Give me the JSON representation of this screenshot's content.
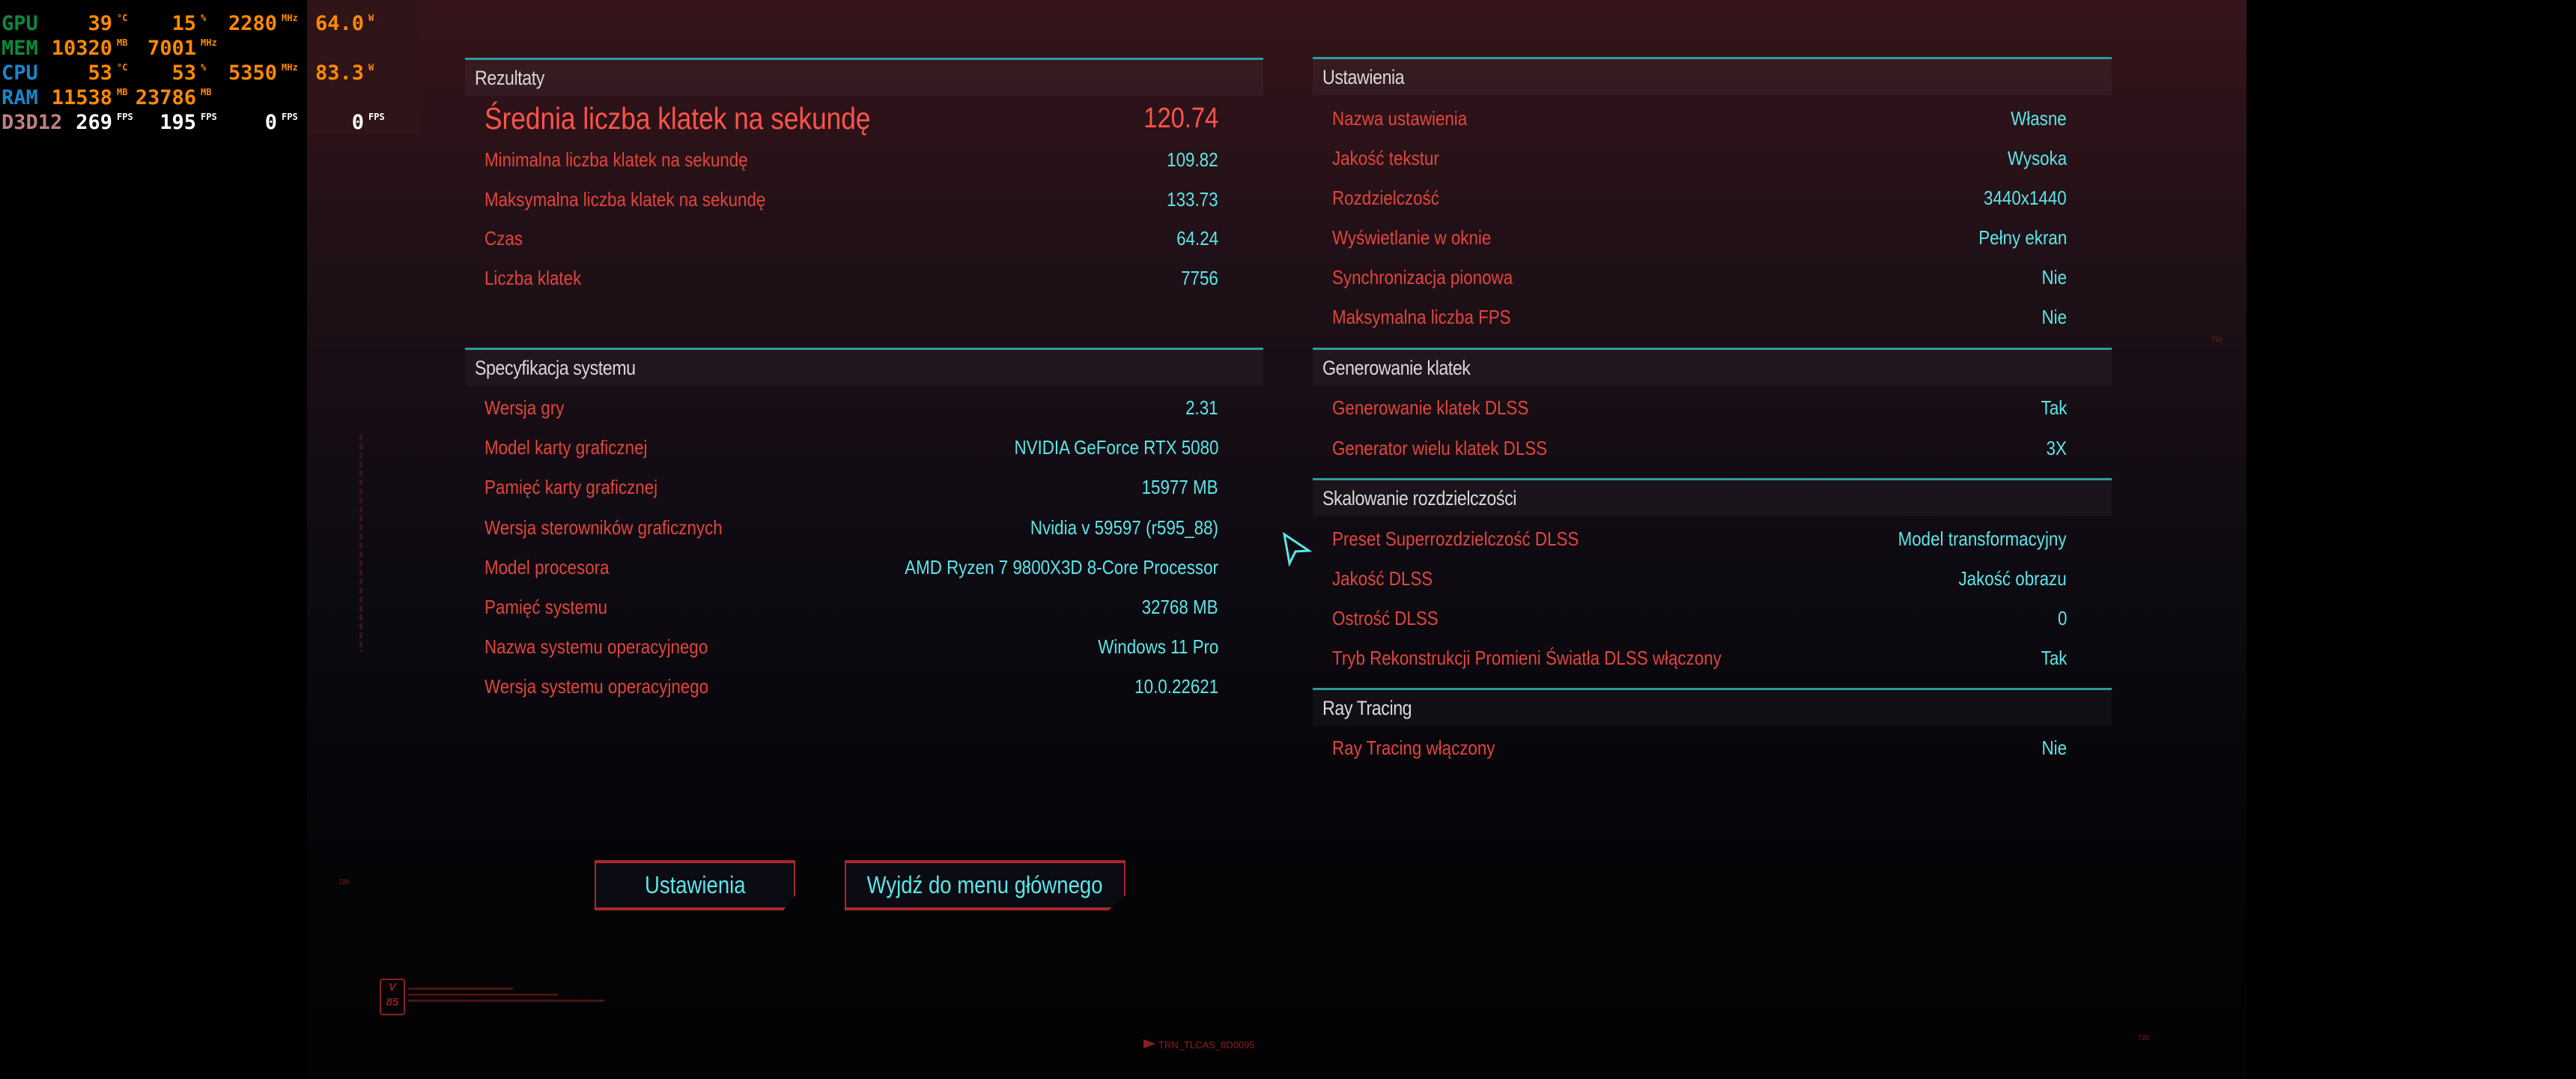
{
  "osd": {
    "rows": [
      {
        "label": "GPU",
        "label_color": "#0a8a3e",
        "cells": [
          {
            "v": "39",
            "u": "°C"
          },
          {
            "v": "15",
            "u": "%"
          },
          {
            "v": "2280",
            "u": "MHz"
          },
          {
            "v": "64.0",
            "u": "W"
          }
        ]
      },
      {
        "label": "MEM",
        "label_color": "#0a8a3e",
        "cells": [
          {
            "v": "10320",
            "u": "MB"
          },
          {
            "v": "7001",
            "u": "MHz"
          }
        ]
      },
      {
        "label": "CPU",
        "label_color": "#1a86c8",
        "cells": [
          {
            "v": "53",
            "u": "°C"
          },
          {
            "v": "53",
            "u": "%"
          },
          {
            "v": "5350",
            "u": "MHz"
          },
          {
            "v": "83.3",
            "u": "W"
          }
        ]
      },
      {
        "label": "RAM",
        "label_color": "#1a86c8",
        "cells": [
          {
            "v": "11538",
            "u": "MB"
          },
          {
            "v": "23786",
            "u": "MB"
          }
        ]
      },
      {
        "label": "D3D12",
        "label_color": "#c08080",
        "value_color": "#ffffff",
        "cells": [
          {
            "v": "269",
            "u": "FPS"
          },
          {
            "v": "195",
            "u": "FPS"
          },
          {
            "v": "0",
            "u": "FPS"
          },
          {
            "v": "0",
            "u": "FPS"
          }
        ]
      }
    ],
    "value_color": "#ff8a00"
  },
  "left": {
    "sections": [
      {
        "title": "Rezultaty",
        "rows": [
          {
            "label": "Średnia liczba klatek na sekundę",
            "value": "120.74",
            "big": true
          },
          {
            "label": "Minimalna liczba klatek na sekundę",
            "value": "109.82"
          },
          {
            "label": "Maksymalna liczba klatek na sekundę",
            "value": "133.73"
          },
          {
            "label": "Czas",
            "value": "64.24"
          },
          {
            "label": "Liczba klatek",
            "value": "7756"
          }
        ]
      },
      {
        "title": "Specyfikacja systemu",
        "rows": [
          {
            "label": "Wersja gry",
            "value": "2.31"
          },
          {
            "label": "Model karty graficznej",
            "value": "NVIDIA GeForce RTX 5080"
          },
          {
            "label": "Pamięć karty graficznej",
            "value": "15977 MB"
          },
          {
            "label": "Wersja sterowników graficznych",
            "value": "Nvidia v 59597 (r595_88)"
          },
          {
            "label": "Model procesora",
            "value": "AMD Ryzen 7 9800X3D 8-Core Processor"
          },
          {
            "label": "Pamięć systemu",
            "value": "32768 MB"
          },
          {
            "label": "Nazwa systemu operacyjnego",
            "value": "Windows 11 Pro"
          },
          {
            "label": "Wersja systemu operacyjnego",
            "value": "10.0.22621"
          }
        ]
      }
    ]
  },
  "right": {
    "sections": [
      {
        "title": "Ustawienia",
        "rows": [
          {
            "label": "Nazwa ustawienia",
            "value": "Własne"
          },
          {
            "label": "Jakość tekstur",
            "value": "Wysoka"
          },
          {
            "label": "Rozdzielczość",
            "value": "3440x1440"
          },
          {
            "label": "Wyświetlanie w oknie",
            "value": "Pełny ekran"
          },
          {
            "label": "Synchronizacja pionowa",
            "value": "Nie"
          },
          {
            "label": "Maksymalna liczba FPS",
            "value": "Nie"
          }
        ]
      },
      {
        "title": "Generowanie klatek",
        "rows": [
          {
            "label": "Generowanie klatek DLSS",
            "value": "Tak"
          },
          {
            "label": "Generator wielu klatek DLSS",
            "value": "3X"
          }
        ]
      },
      {
        "title": "Skalowanie rozdzielczości",
        "rows": [
          {
            "label": "Preset Superrozdzielczość DLSS",
            "value": "Model transformacyjny"
          },
          {
            "label": "Jakość DLSS",
            "value": "Jakość obrazu"
          },
          {
            "label": "Ostrość DLSS",
            "value": "0"
          },
          {
            "label": "Tryb Rekonstrukcji Promieni Światła DLSS włączony",
            "value": "Tak"
          }
        ]
      },
      {
        "title": "Ray Tracing",
        "rows": [
          {
            "label": "Ray Tracing włączony",
            "value": "Nie"
          }
        ]
      }
    ]
  },
  "buttons": {
    "settings": "Ustawienia",
    "exit": "Wyjdź do menu głównego"
  },
  "deco": {
    "code": "TRN_TLCAS_8D0095",
    "logo": "V 85",
    "mark": "720"
  },
  "colors": {
    "label": "#e2453c",
    "value": "#5ae6e8",
    "accent_line": "#2f9a9c",
    "button_border": "#a8282a"
  }
}
